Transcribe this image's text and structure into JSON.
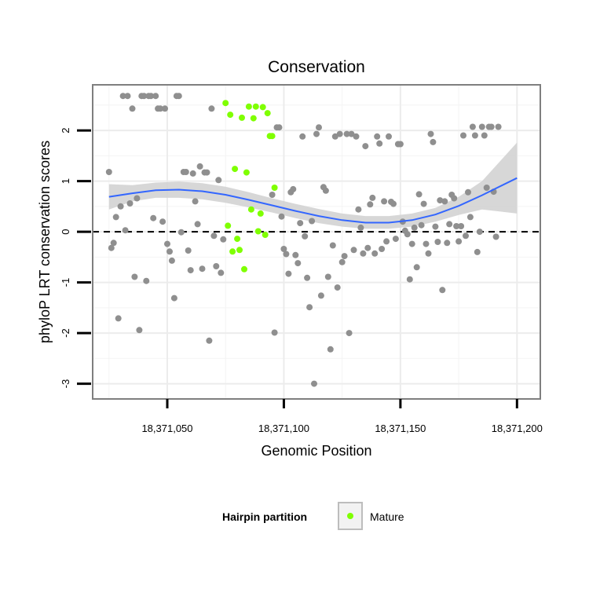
{
  "chart_data": {
    "type": "scatter",
    "title": "Conservation",
    "xlabel": "Genomic Position",
    "ylabel": "phyloP LRT conservation scores",
    "xlim": [
      18371018,
      18371210
    ],
    "ylim": [
      -3.3,
      2.9
    ],
    "x_ticks": [
      18371050,
      18371100,
      18371150,
      18371200
    ],
    "x_tick_labels": [
      "18,371,050",
      "18,371,100",
      "18,371,150",
      "18,371,200"
    ],
    "y_ticks": [
      -3,
      -2,
      -1,
      0,
      1,
      2
    ],
    "y_tick_labels": [
      "-3",
      "-2",
      "-1",
      "0",
      "1",
      "2"
    ],
    "reference_line": {
      "y": 0,
      "style": "dashed"
    },
    "grid": true,
    "legend": {
      "title": "Hairpin partition",
      "placement": "bottom",
      "entries": [
        {
          "label": "Mature",
          "color": "#7fff00"
        }
      ]
    },
    "colors": {
      "other": "#8f8f8f",
      "mature": "#7fff00",
      "smooth": "#3366ff",
      "band": "#d3d3d3"
    },
    "series": [
      {
        "group": "other",
        "points": [
          [
            18371025,
            1.18
          ],
          [
            18371026,
            -0.32
          ],
          [
            18371027,
            -0.22
          ],
          [
            18371028,
            0.29
          ],
          [
            18371029,
            -1.71
          ],
          [
            18371030,
            0.5
          ],
          [
            18371031,
            2.68
          ],
          [
            18371032,
            0.03
          ],
          [
            18371033,
            2.68
          ],
          [
            18371034,
            0.56
          ],
          [
            18371035,
            2.43
          ],
          [
            18371036,
            -0.89
          ],
          [
            18371037,
            0.66
          ],
          [
            18371038,
            -1.94
          ],
          [
            18371039,
            2.68
          ],
          [
            18371040,
            2.68
          ],
          [
            18371041,
            -0.97
          ],
          [
            18371042,
            2.68
          ],
          [
            18371043,
            2.68
          ],
          [
            18371044,
            0.27
          ],
          [
            18371045,
            2.68
          ],
          [
            18371046,
            2.43
          ],
          [
            18371047,
            2.43
          ],
          [
            18371048,
            0.2
          ],
          [
            18371049,
            2.43
          ],
          [
            18371050,
            -0.24
          ],
          [
            18371051,
            -0.39
          ],
          [
            18371052,
            -0.57
          ],
          [
            18371053,
            -1.31
          ],
          [
            18371054,
            2.68
          ],
          [
            18371055,
            2.68
          ],
          [
            18371056,
            -0.01
          ],
          [
            18371057,
            1.18
          ],
          [
            18371058,
            1.18
          ],
          [
            18371059,
            -0.37
          ],
          [
            18371060,
            -0.76
          ],
          [
            18371061,
            1.15
          ],
          [
            18371062,
            0.6
          ],
          [
            18371063,
            0.15
          ],
          [
            18371064,
            1.29
          ],
          [
            18371065,
            -0.73
          ],
          [
            18371066,
            1.17
          ],
          [
            18371067,
            1.17
          ],
          [
            18371068,
            -2.15
          ],
          [
            18371069,
            2.43
          ],
          [
            18371070,
            -0.08
          ],
          [
            18371071,
            -0.68
          ],
          [
            18371072,
            1.02
          ],
          [
            18371073,
            -0.81
          ],
          [
            18371074,
            -0.15
          ],
          [
            18371095,
            0.73
          ],
          [
            18371096,
            -1.99
          ],
          [
            18371097,
            2.06
          ],
          [
            18371098,
            2.06
          ],
          [
            18371099,
            0.3
          ],
          [
            18371100,
            -0.34
          ],
          [
            18371101,
            -0.44
          ],
          [
            18371102,
            -0.83
          ],
          [
            18371103,
            0.78
          ],
          [
            18371104,
            0.84
          ],
          [
            18371105,
            -0.46
          ],
          [
            18371106,
            -0.62
          ],
          [
            18371107,
            0.17
          ],
          [
            18371108,
            1.88
          ],
          [
            18371109,
            -0.09
          ],
          [
            18371110,
            -0.91
          ],
          [
            18371111,
            -1.49
          ],
          [
            18371112,
            0.21
          ],
          [
            18371113,
            -3.0
          ],
          [
            18371114,
            1.93
          ],
          [
            18371115,
            2.06
          ],
          [
            18371116,
            -1.26
          ],
          [
            18371117,
            0.88
          ],
          [
            18371118,
            0.81
          ],
          [
            18371119,
            -0.89
          ],
          [
            18371120,
            -2.32
          ],
          [
            18371121,
            -0.27
          ],
          [
            18371122,
            1.88
          ],
          [
            18371123,
            -1.1
          ],
          [
            18371124,
            1.93
          ],
          [
            18371125,
            -0.6
          ],
          [
            18371126,
            -0.48
          ],
          [
            18371127,
            1.93
          ],
          [
            18371128,
            -2.0
          ],
          [
            18371129,
            1.93
          ],
          [
            18371130,
            -0.36
          ],
          [
            18371131,
            1.88
          ],
          [
            18371132,
            0.44
          ],
          [
            18371133,
            0.08
          ],
          [
            18371134,
            -0.43
          ],
          [
            18371135,
            1.69
          ],
          [
            18371136,
            -0.32
          ],
          [
            18371137,
            0.54
          ],
          [
            18371138,
            0.67
          ],
          [
            18371139,
            -0.43
          ],
          [
            18371140,
            1.88
          ],
          [
            18371141,
            1.74
          ],
          [
            18371142,
            -0.34
          ],
          [
            18371143,
            0.6
          ],
          [
            18371144,
            -0.19
          ],
          [
            18371145,
            1.88
          ],
          [
            18371146,
            0.59
          ],
          [
            18371147,
            0.55
          ],
          [
            18371148,
            -0.14
          ],
          [
            18371149,
            1.73
          ],
          [
            18371150,
            1.73
          ],
          [
            18371151,
            0.2
          ],
          [
            18371152,
            0.02
          ],
          [
            18371153,
            -0.05
          ],
          [
            18371154,
            -0.94
          ],
          [
            18371155,
            -0.24
          ],
          [
            18371156,
            0.08
          ],
          [
            18371157,
            -0.7
          ],
          [
            18371158,
            0.74
          ],
          [
            18371159,
            0.13
          ],
          [
            18371160,
            0.55
          ],
          [
            18371161,
            -0.24
          ],
          [
            18371162,
            -0.43
          ],
          [
            18371163,
            1.93
          ],
          [
            18371164,
            1.77
          ],
          [
            18371165,
            0.1
          ],
          [
            18371166,
            -0.2
          ],
          [
            18371167,
            0.62
          ],
          [
            18371168,
            -1.15
          ],
          [
            18371169,
            0.6
          ],
          [
            18371170,
            -0.22
          ],
          [
            18371171,
            0.15
          ],
          [
            18371172,
            0.73
          ],
          [
            18371173,
            0.66
          ],
          [
            18371174,
            0.11
          ],
          [
            18371175,
            -0.19
          ],
          [
            18371176,
            0.11
          ],
          [
            18371177,
            1.9
          ],
          [
            18371178,
            -0.08
          ],
          [
            18371179,
            0.78
          ],
          [
            18371180,
            0.29
          ],
          [
            18371181,
            2.07
          ],
          [
            18371182,
            1.9
          ],
          [
            18371183,
            -0.4
          ],
          [
            18371184,
            0.0
          ],
          [
            18371185,
            2.07
          ],
          [
            18371186,
            1.9
          ],
          [
            18371187,
            0.87
          ],
          [
            18371188,
            2.07
          ],
          [
            18371189,
            2.07
          ],
          [
            18371190,
            0.79
          ],
          [
            18371191,
            -0.1
          ],
          [
            18371192,
            2.07
          ]
        ]
      },
      {
        "group": "mature",
        "name": "Mature",
        "points": [
          [
            18371075,
            2.54
          ],
          [
            18371076,
            0.12
          ],
          [
            18371077,
            2.31
          ],
          [
            18371078,
            -0.39
          ],
          [
            18371079,
            1.24
          ],
          [
            18371080,
            -0.14
          ],
          [
            18371081,
            -0.36
          ],
          [
            18371082,
            2.25
          ],
          [
            18371083,
            -0.74
          ],
          [
            18371084,
            1.17
          ],
          [
            18371085,
            2.47
          ],
          [
            18371086,
            0.44
          ],
          [
            18371087,
            2.24
          ],
          [
            18371088,
            2.47
          ],
          [
            18371089,
            0.01
          ],
          [
            18371090,
            0.36
          ],
          [
            18371091,
            2.46
          ],
          [
            18371092,
            -0.06
          ],
          [
            18371093,
            2.34
          ],
          [
            18371094,
            1.89
          ],
          [
            18371095,
            1.89
          ],
          [
            18371096,
            0.87
          ]
        ]
      }
    ],
    "smooth": {
      "method": "loess",
      "x": [
        18371025,
        18371035,
        18371045,
        18371055,
        18371065,
        18371075,
        18371085,
        18371095,
        18371105,
        18371115,
        18371125,
        18371135,
        18371145,
        18371155,
        18371165,
        18371175,
        18371185,
        18371200
      ],
      "y": [
        0.69,
        0.76,
        0.82,
        0.83,
        0.8,
        0.73,
        0.63,
        0.52,
        0.41,
        0.31,
        0.23,
        0.18,
        0.18,
        0.23,
        0.34,
        0.51,
        0.72,
        1.06
      ],
      "lower": [
        0.44,
        0.6,
        0.67,
        0.67,
        0.64,
        0.57,
        0.48,
        0.38,
        0.27,
        0.17,
        0.1,
        0.06,
        0.06,
        0.1,
        0.2,
        0.33,
        0.44,
        0.36
      ],
      "upper": [
        0.94,
        0.92,
        0.97,
        0.99,
        0.96,
        0.89,
        0.78,
        0.66,
        0.55,
        0.45,
        0.36,
        0.31,
        0.31,
        0.36,
        0.47,
        0.69,
        1.0,
        1.76
      ]
    }
  }
}
